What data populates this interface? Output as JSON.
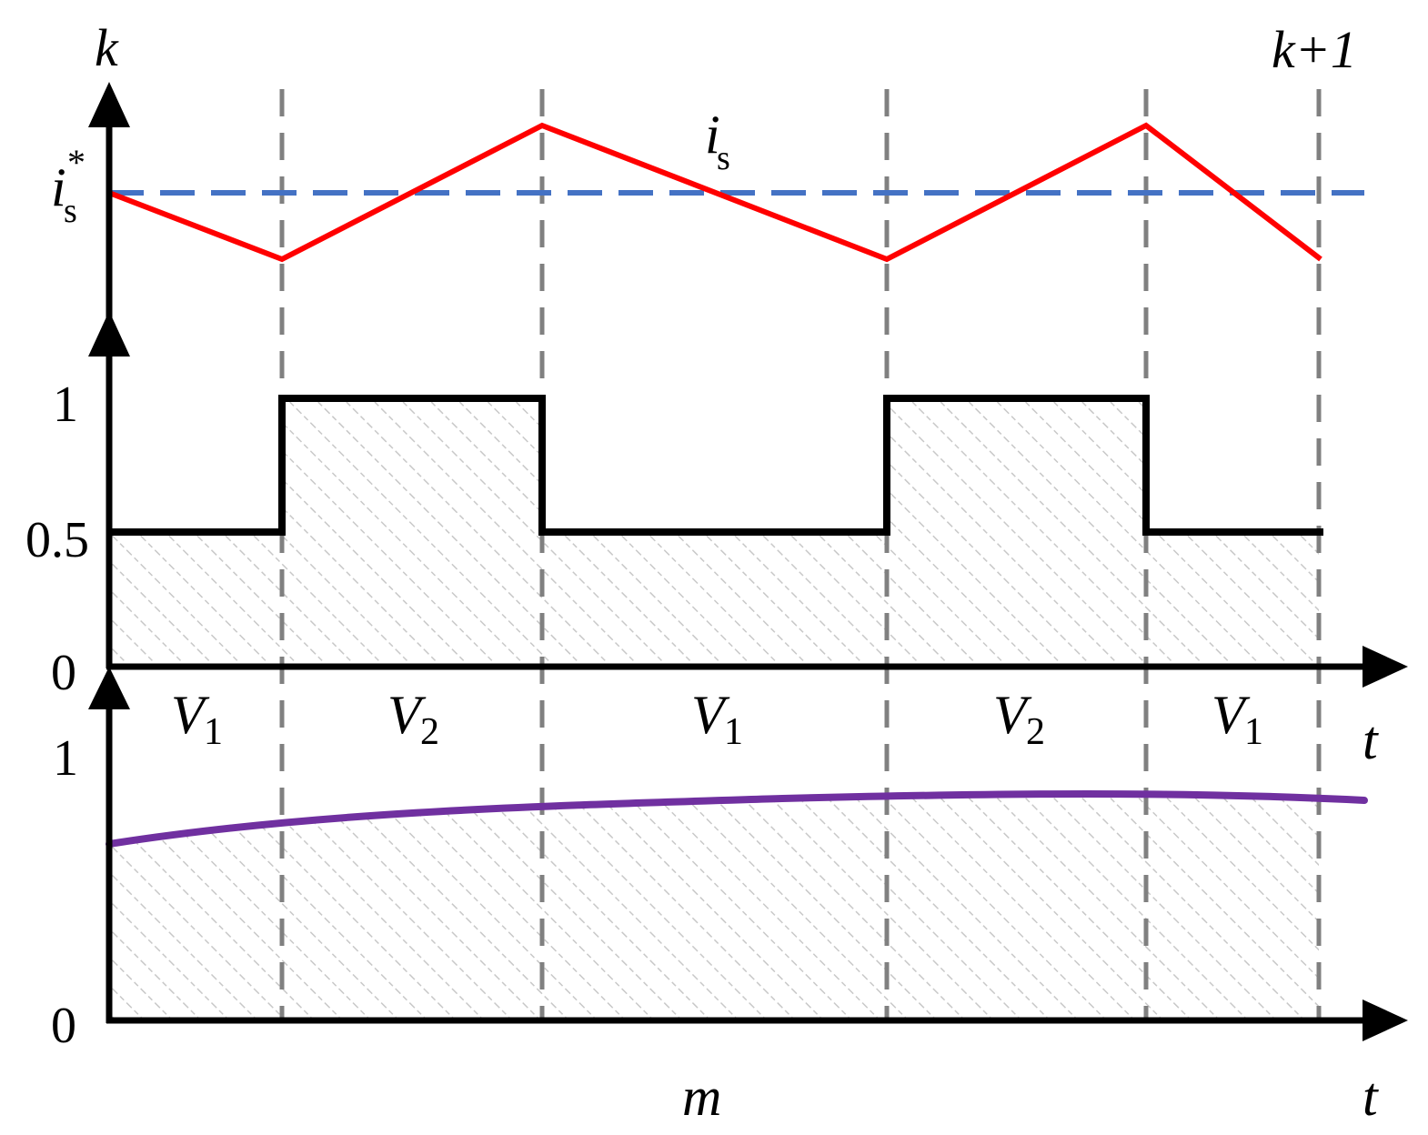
{
  "labels": {
    "k_start": "k",
    "k_end": "k+1",
    "is_ref_base": "i",
    "is_ref_sub": "s",
    "is_ref_sup": "*",
    "is_base": "i",
    "is_sub": "s",
    "tick_1": "1",
    "tick_05": "0.5",
    "tick_0_mid": "0",
    "tick_1_bottom": "1",
    "tick_0_bottom": "0",
    "t_mid": "t",
    "t_bottom": "t",
    "m": "m"
  },
  "segments": [
    {
      "base": "V",
      "sub": "1"
    },
    {
      "base": "V",
      "sub": "2"
    },
    {
      "base": "V",
      "sub": "1"
    },
    {
      "base": "V",
      "sub": "2"
    },
    {
      "base": "V",
      "sub": "1"
    }
  ],
  "colors": {
    "current": "#ff0000",
    "reference": "#4472c4",
    "duty": "#000000",
    "m_curve": "#7030a0",
    "dashed": "#808080",
    "hatch": "#c8c8c8"
  }
}
